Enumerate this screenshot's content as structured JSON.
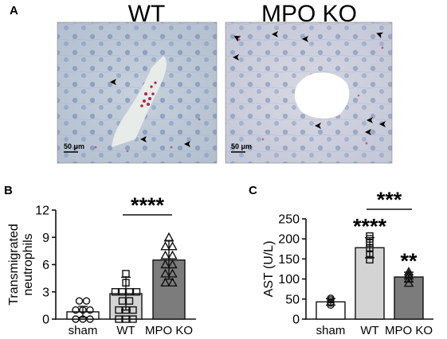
{
  "panel_a": {
    "label": "A",
    "images": [
      {
        "title": "WT",
        "scale_bar": "50 μm"
      },
      {
        "title": "MPO KO",
        "scale_bar": "50 μm"
      }
    ]
  },
  "chart_data": [
    {
      "panel": "B",
      "type": "bar",
      "ylabel": "Transmigrated neutrophils",
      "ylabel_lines": [
        "Transmigrated",
        "neutrophils"
      ],
      "ylim": [
        0,
        12
      ],
      "yticks": [
        "0",
        "3",
        "6",
        "9",
        "12"
      ],
      "categories": [
        "sham",
        "WT",
        "MPO KO"
      ],
      "values": [
        0.8,
        2.8,
        6.5
      ],
      "errors": [
        0.6,
        1.8,
        2.1
      ],
      "bar_colors": [
        "#ffffff",
        "#d4d4d4",
        "#7c7c7c"
      ],
      "markers": [
        "circle",
        "square",
        "triangle"
      ],
      "points": [
        [
          0,
          0,
          0,
          1,
          1,
          1,
          2,
          2
        ],
        [
          0,
          0,
          0,
          1,
          1,
          1,
          2,
          2,
          3,
          3,
          3,
          3,
          4,
          5
        ],
        [
          4,
          4,
          5,
          5,
          6,
          6,
          7,
          7,
          8,
          8,
          9
        ]
      ],
      "annotations": [
        {
          "text": "****",
          "from": "WT",
          "to": "MPO KO"
        }
      ]
    },
    {
      "panel": "C",
      "type": "bar",
      "ylabel": "AST (U/L)",
      "ylim": [
        0,
        250
      ],
      "yticks": [
        "0",
        "50",
        "100",
        "150",
        "200",
        "250"
      ],
      "categories": [
        "sham",
        "WT",
        "MPO KO"
      ],
      "values": [
        43,
        178,
        105
      ],
      "errors": [
        8,
        25,
        12
      ],
      "bar_colors": [
        "#ffffff",
        "#d4d4d4",
        "#7c7c7c"
      ],
      "markers": [
        "circle",
        "square",
        "triangle"
      ],
      "points": [
        [
          35,
          42,
          48,
          52,
          40
        ],
        [
          148,
          160,
          178,
          190,
          200,
          207
        ],
        [
          90,
          100,
          108,
          112,
          118
        ]
      ],
      "annotations": [
        {
          "text": "***",
          "from": "WT",
          "to": "MPO KO"
        },
        {
          "text": "****",
          "above": "WT"
        },
        {
          "text": "**",
          "above": "MPO KO"
        }
      ]
    }
  ]
}
